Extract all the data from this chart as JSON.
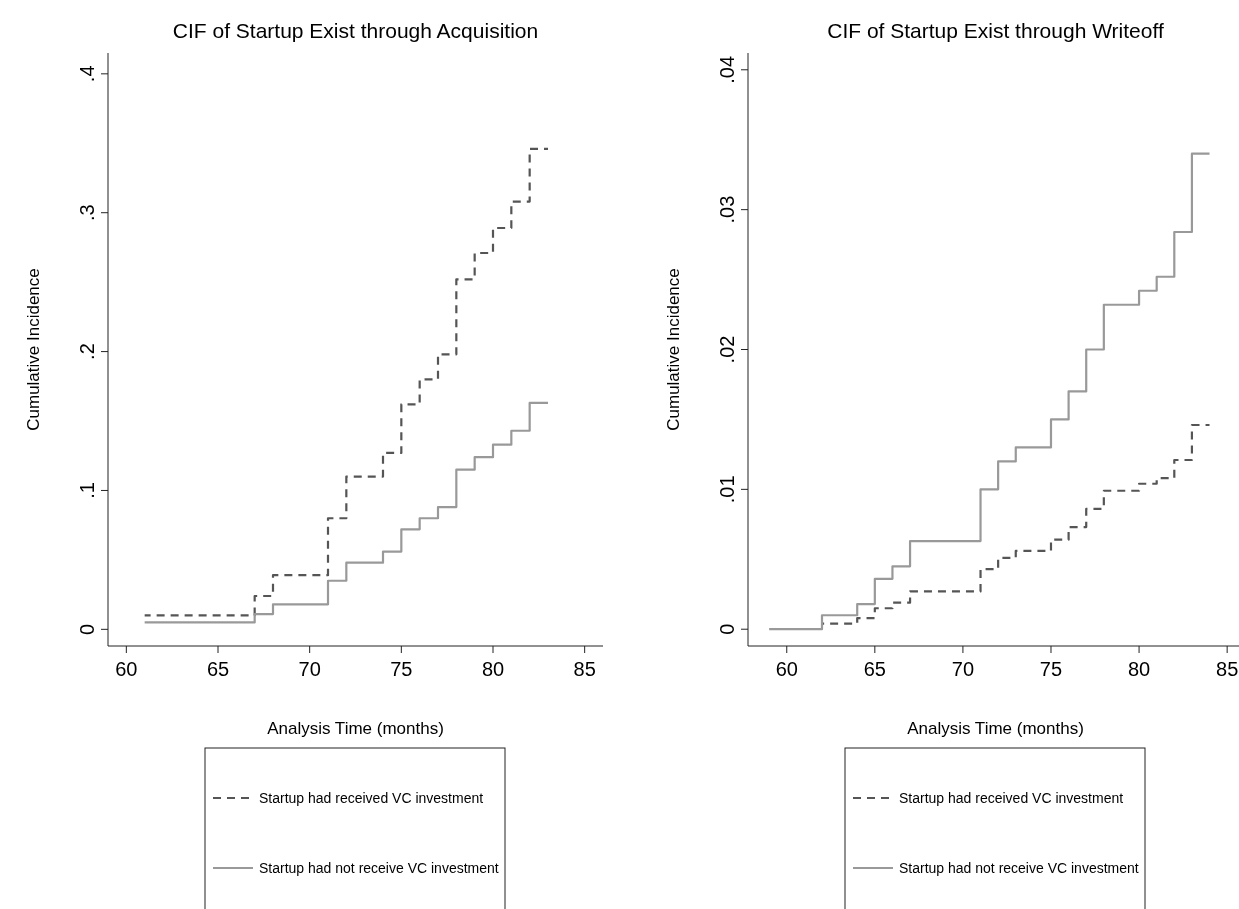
{
  "chart_data": [
    {
      "type": "step",
      "title": "CIF of Startup Exist through Acquisition",
      "xlabel": "Analysis Time (months)",
      "ylabel": "Cumulative Incidence",
      "xlim": [
        59,
        86
      ],
      "ylim": [
        -0.012,
        0.415
      ],
      "xticks": [
        60,
        65,
        70,
        75,
        80,
        85
      ],
      "yticks": [
        0,
        {
          "value": 0.1,
          "label": ".1"
        },
        {
          "value": 0.2,
          "label": ".2"
        },
        {
          "value": 0.3,
          "label": ".3"
        },
        {
          "value": 0.4,
          "label": ".4"
        }
      ],
      "grid": false,
      "legend": "bottom",
      "series": [
        {
          "name": "Startup had received VC investment",
          "color": "#555555",
          "line_style": "dashed",
          "x": [
            61,
            67,
            68,
            71,
            72,
            74,
            75,
            76,
            77,
            78,
            79,
            80,
            81,
            82,
            83
          ],
          "values": [
            0.01,
            0.024,
            0.039,
            0.08,
            0.11,
            0.127,
            0.162,
            0.18,
            0.198,
            0.252,
            0.271,
            0.289,
            0.308,
            0.346,
            0.346
          ]
        },
        {
          "name": "Startup had not receive VC investment",
          "color": "#999999",
          "line_style": "solid",
          "x": [
            61,
            67,
            68,
            71,
            72,
            74,
            75,
            76,
            77,
            78,
            79,
            80,
            81,
            82,
            83
          ],
          "values": [
            0.005,
            0.011,
            0.018,
            0.035,
            0.048,
            0.056,
            0.072,
            0.08,
            0.088,
            0.115,
            0.124,
            0.133,
            0.143,
            0.163,
            0.163
          ]
        }
      ]
    },
    {
      "type": "step",
      "title": "CIF of Startup Exist through Writeoff",
      "xlabel": "Analysis Time (months)",
      "ylabel": "Cumulative Incidence",
      "xlim": [
        57.8,
        85.9
      ],
      "ylim": [
        -0.0012,
        0.0412
      ],
      "xticks": [
        60,
        65,
        70,
        75,
        80,
        85
      ],
      "yticks": [
        0,
        {
          "value": 0.01,
          "label": ".01"
        },
        {
          "value": 0.02,
          "label": ".02"
        },
        {
          "value": 0.03,
          "label": ".03"
        },
        {
          "value": 0.04,
          "label": ".04"
        }
      ],
      "grid": false,
      "legend": "bottom",
      "series": [
        {
          "name": "Startup had received VC investment",
          "color": "#555555",
          "line_style": "dashed",
          "x": [
            62,
            64,
            65,
            66,
            67,
            71,
            72,
            73,
            75,
            76,
            77,
            78,
            80,
            81,
            82,
            83,
            84
          ],
          "values": [
            0.0004,
            0.0008,
            0.0015,
            0.0019,
            0.0027,
            0.0043,
            0.0051,
            0.0056,
            0.0064,
            0.0073,
            0.0086,
            0.0099,
            0.0104,
            0.0108,
            0.0121,
            0.0146,
            0.0146
          ]
        },
        {
          "name": "Startup had not receive VC investment",
          "color": "#999999",
          "line_style": "solid",
          "x": [
            59,
            62,
            64,
            65,
            66,
            67,
            71,
            72,
            73,
            75,
            76,
            77,
            78,
            80,
            81,
            82,
            83,
            84
          ],
          "values": [
            0,
            0.001,
            0.0018,
            0.0036,
            0.0045,
            0.0063,
            0.01,
            0.012,
            0.013,
            0.015,
            0.017,
            0.02,
            0.0232,
            0.0242,
            0.0252,
            0.0284,
            0.034,
            0.034
          ]
        }
      ]
    }
  ]
}
